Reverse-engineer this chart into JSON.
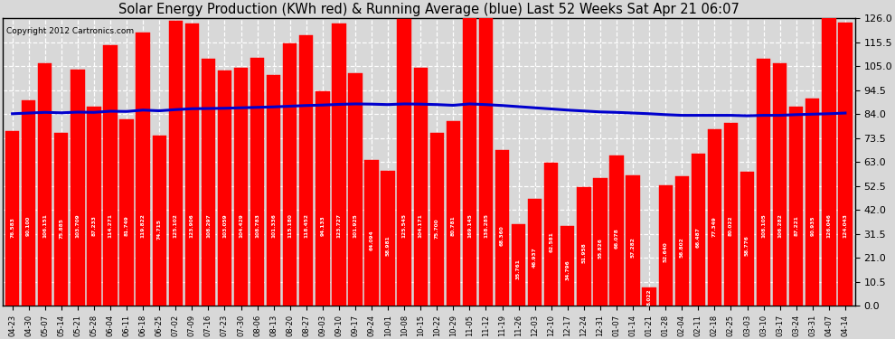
{
  "title": "Solar Energy Production (KWh red) & Running Average (blue) Last 52 Weeks Sat Apr 21 06:07",
  "copyright": "Copyright 2012 Cartronics.com",
  "bar_color": "#ff0000",
  "avg_line_color": "#0000cd",
  "background_color": "#d8d8d8",
  "plot_bg_color": "#d8d8d8",
  "categories": [
    "04-23",
    "04-30",
    "05-07",
    "05-14",
    "05-21",
    "05-28",
    "06-04",
    "06-11",
    "06-18",
    "06-25",
    "07-02",
    "07-09",
    "07-16",
    "07-23",
    "07-30",
    "08-06",
    "08-13",
    "08-20",
    "08-27",
    "09-03",
    "09-10",
    "09-17",
    "09-24",
    "10-01",
    "10-08",
    "10-15",
    "10-22",
    "10-29",
    "11-05",
    "11-12",
    "11-19",
    "11-26",
    "12-03",
    "12-10",
    "12-17",
    "12-24",
    "12-31",
    "01-07",
    "01-14",
    "01-21",
    "01-28",
    "02-04",
    "02-11",
    "02-18",
    "02-25",
    "03-03",
    "03-10",
    "03-17",
    "03-24",
    "03-31",
    "04-07",
    "04-14"
  ],
  "values": [
    76.583,
    90.1,
    106.151,
    75.885,
    103.709,
    87.2331,
    114.271,
    81.749,
    119.822,
    74.715,
    125.102,
    123.906,
    108.297,
    103.059,
    104.429,
    108.783,
    101.336,
    115.18,
    118.452,
    94.133,
    123.727,
    101.925,
    64.094,
    58.981,
    125.545,
    104.171,
    75.7,
    80.781,
    169.145,
    138.285,
    68.36,
    35.761,
    46.937,
    62.581,
    34.796,
    51.958,
    55.826,
    66.078,
    57.282,
    8.022,
    52.64,
    56.802,
    66.487,
    77.349,
    80.022,
    58.776,
    108.105,
    106.282,
    87.221,
    90.935,
    126.046,
    124.043
  ],
  "running_avg": [
    84.2,
    84.5,
    84.8,
    84.6,
    84.9,
    84.8,
    85.3,
    85.2,
    85.8,
    85.5,
    86.0,
    86.4,
    86.5,
    86.6,
    86.8,
    87.0,
    87.2,
    87.5,
    87.8,
    88.0,
    88.3,
    88.5,
    88.4,
    88.2,
    88.5,
    88.4,
    88.2,
    87.9,
    88.5,
    88.2,
    87.8,
    87.3,
    86.8,
    86.3,
    85.8,
    85.4,
    85.0,
    84.8,
    84.5,
    84.2,
    83.8,
    83.5,
    83.5,
    83.5,
    83.5,
    83.3,
    83.5,
    83.5,
    83.8,
    84.0,
    84.2,
    84.5
  ],
  "yticks": [
    0.0,
    10.5,
    21.0,
    31.5,
    42.0,
    52.5,
    63.0,
    73.5,
    84.0,
    94.5,
    105.0,
    115.5,
    126.0
  ],
  "ylim": [
    0,
    130.0
  ],
  "title_fontsize": 10.5,
  "bar_width": 0.85
}
